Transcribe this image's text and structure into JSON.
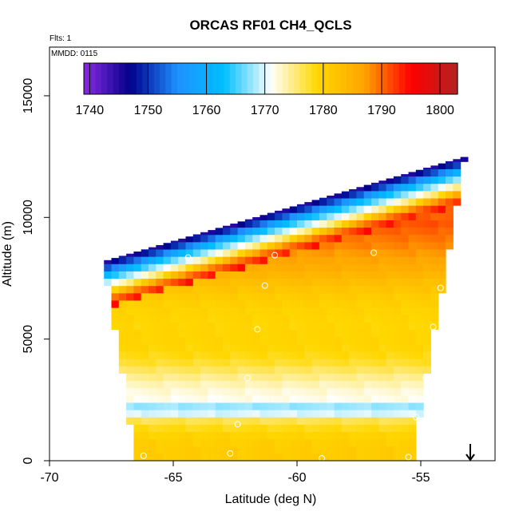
{
  "chart_data": {
    "type": "heatmap",
    "title": "ORCAS RF01 CH4_QCLS",
    "subtitle": "Flts: 1",
    "annotation": "MMDD: 0115",
    "xlabel": "Latitude (deg N)",
    "ylabel": "Altitude (m)",
    "xlim": [
      -70,
      -52
    ],
    "ylim": [
      0,
      17000
    ],
    "x_ticks": [
      -70,
      -65,
      -60,
      -55
    ],
    "x_tick_labels": [
      "-70",
      "-65",
      "-60",
      "-55"
    ],
    "y_ticks": [
      0,
      5000,
      10000,
      15000
    ],
    "y_tick_labels": [
      "0",
      "5000",
      "10000",
      "15000"
    ],
    "colorbar": {
      "min": 1739,
      "max": 1803,
      "ticks": [
        1740,
        1750,
        1760,
        1770,
        1780,
        1790,
        1800
      ],
      "tick_labels": [
        "1740",
        "1750",
        "1760",
        "1770",
        "1780",
        "1790",
        "1800"
      ],
      "colors": [
        "#8a2be2",
        "#00008b",
        "#1e90ff",
        "#00bfff",
        "#ffffff",
        "#ffd700",
        "#ffa500",
        "#ff0000",
        "#b22222"
      ]
    },
    "domain": {
      "lat_left_bottom": -66.5,
      "lat_left_top": -67.8,
      "alt_left_top": 8200,
      "lat_right": -53.2,
      "alt_right_top": 12500,
      "lat_right_bottom": -55.1
    },
    "profile": [
      {
        "alt": 0,
        "value": 1782
      },
      {
        "alt": 1200,
        "value": 1779
      },
      {
        "alt": 2500,
        "value": 1774
      },
      {
        "alt": 4000,
        "value": 1778
      },
      {
        "alt": 5500,
        "value": 1780
      },
      {
        "alt": 6500,
        "value": 1783
      },
      {
        "alt": 7500,
        "value": 1785
      },
      {
        "alt": 8500,
        "value": 1787
      },
      {
        "alt": 9200,
        "value": 1790
      },
      {
        "alt": 9700,
        "value": 1793
      }
    ],
    "top_layers": [
      {
        "depth": 0,
        "value": 1745
      },
      {
        "depth": 300,
        "value": 1752
      },
      {
        "depth": 600,
        "value": 1762
      },
      {
        "depth": 900,
        "value": 1769
      },
      {
        "depth": 1200,
        "value": 1776
      },
      {
        "depth": 1500,
        "value": 1788
      },
      {
        "depth": 1900,
        "value": 1795
      }
    ],
    "flight_points": [
      {
        "lat": -66.2,
        "alt": 200
      },
      {
        "lat": -62.7,
        "alt": 300
      },
      {
        "lat": -59.0,
        "alt": 100
      },
      {
        "lat": -55.5,
        "alt": 150
      },
      {
        "lat": -62.4,
        "alt": 1500
      },
      {
        "lat": -55.2,
        "alt": 1800
      },
      {
        "lat": -62.0,
        "alt": 3400
      },
      {
        "lat": -54.8,
        "alt": 3400
      },
      {
        "lat": -61.6,
        "alt": 5400
      },
      {
        "lat": -54.5,
        "alt": 5500
      },
      {
        "lat": -61.3,
        "alt": 7200
      },
      {
        "lat": -54.2,
        "alt": 7100
      },
      {
        "lat": -64.4,
        "alt": 8350
      },
      {
        "lat": -60.9,
        "alt": 8450
      },
      {
        "lat": -56.9,
        "alt": 8550
      },
      {
        "lat": -53.4,
        "alt": 10250
      }
    ],
    "arrow_marker": {
      "lat": -53.0,
      "alt": 0
    }
  }
}
